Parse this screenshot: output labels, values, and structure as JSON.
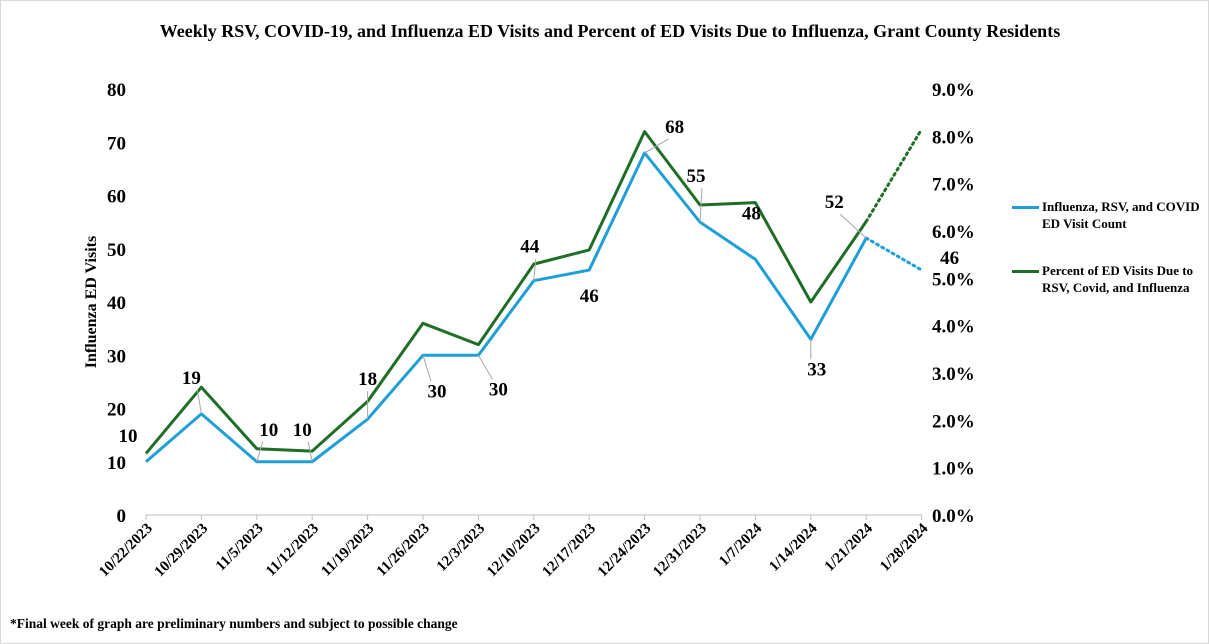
{
  "chart_data": {
    "type": "line",
    "title": "Weekly RSV, COVID-19, and Influenza ED Visits and Percent of ED Visits Due to Influenza, Grant County Residents",
    "ylabel": "Influenza ED Visits",
    "ylim": [
      0,
      80
    ],
    "y_ticks": [
      "0",
      "10",
      "20",
      "30",
      "40",
      "50",
      "60",
      "70",
      "80"
    ],
    "y2lim": [
      0,
      9
    ],
    "y2_ticks": [
      "0.0%",
      "1.0%",
      "2.0%",
      "3.0%",
      "4.0%",
      "5.0%",
      "6.0%",
      "7.0%",
      "8.0%",
      "9.0%"
    ],
    "categories": [
      "10/22/2023",
      "10/29/2023",
      "11/5/2023",
      "11/12/2023",
      "11/19/2023",
      "11/26/2023",
      "12/3/2023",
      "12/10/2023",
      "12/17/2023",
      "12/24/2023",
      "12/31/2023",
      "1/7/2024",
      "1/14/2024",
      "1/21/2024",
      "1/28/2024"
    ],
    "series": [
      {
        "name": "Influenza, RSV, and COVID ED Visit Count",
        "axis": "left",
        "color": "#1e9fd8",
        "values": [
          10,
          19,
          10,
          10,
          18,
          30,
          30,
          44,
          46,
          68,
          55,
          48,
          33,
          52,
          46
        ],
        "data_labels": [
          "10",
          "19",
          "10",
          "10",
          "18",
          "30",
          "30",
          "44",
          "46",
          "68",
          "55",
          "48",
          "33",
          "52",
          "46"
        ],
        "preliminary_last": true
      },
      {
        "name": "Percent of ED Visits Due to RSV, Covid, and Influenza",
        "axis": "right",
        "color": "#1f6e26",
        "values": [
          1.3,
          2.7,
          1.4,
          1.35,
          2.4,
          4.05,
          3.6,
          5.3,
          5.6,
          8.1,
          6.55,
          6.6,
          4.5,
          6.2,
          8.15
        ],
        "preliminary_last": true
      }
    ],
    "legend_position": "right",
    "grid": false
  },
  "footnote": "*Final week of graph are preliminary numbers and subject to possible change"
}
